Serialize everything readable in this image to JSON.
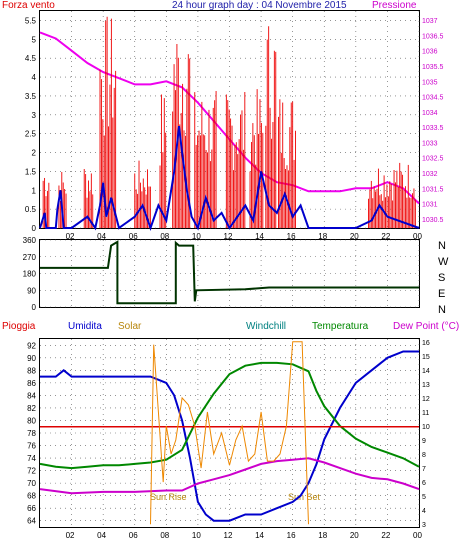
{
  "top_chart": {
    "title": "24 hour graph day : 04 Novembre 2015",
    "left_label": "Forza vento",
    "right_label": "Pressione",
    "title_color": "#2222aa",
    "left_color": "#dd0000",
    "right_color": "#cc00cc"
  },
  "dir_chart": {
    "labels": [
      "N",
      "W",
      "S",
      "E",
      "N"
    ]
  },
  "bottom_chart": {
    "labels": {
      "pioggia": "Pioggia",
      "umidita": "Umidita",
      "solar": "Solar",
      "windchill": "Windchill",
      "temperatura": "Temperatura",
      "dewpoint": "Dew Point (°C)"
    },
    "sun_rise": "Sun Rise",
    "sun_set": "Sun Set",
    "colors": {
      "pioggia": "#dd0000",
      "umidita": "#0000cc",
      "solar": "#b8860b",
      "windchill": "#008080",
      "temperatura": "#008800",
      "dewpoint": "#cc00cc"
    }
  },
  "chart_data": [
    {
      "type": "line",
      "title": "24 hour graph day : 04 Novembre 2015",
      "x_ticks": [
        "02",
        "04",
        "06",
        "08",
        "10",
        "12",
        "14",
        "16",
        "18",
        "20",
        "22",
        "00"
      ],
      "xlim": [
        0,
        24
      ],
      "grid": true,
      "left_axis": {
        "label": "Forza vento",
        "ticks": [
          "0",
          "0.5",
          "1",
          "1.5",
          "2",
          "2.5",
          "3",
          "3.5",
          "4",
          "4.5",
          "5",
          "5.5"
        ],
        "ylim": [
          0,
          5.75
        ]
      },
      "right_axis": {
        "label": "Pressione",
        "ticks": [
          "1030.5",
          "1031",
          "1031.5",
          "1032",
          "1032.5",
          "1033",
          "1033.5",
          "1034",
          "1034.5",
          "1035",
          "1035.5",
          "1036",
          "1036.5",
          "1037"
        ],
        "ylim": [
          1030.2,
          1037.3
        ]
      },
      "series": [
        {
          "name": "Pressione",
          "axis": "right",
          "color": "#ee00ee",
          "x": [
            0,
            1,
            2,
            3,
            4,
            5,
            6,
            7,
            8,
            9,
            10,
            11,
            12,
            13,
            14,
            15,
            16,
            17,
            18,
            19,
            20,
            21,
            22,
            23,
            24
          ],
          "y": [
            1036.6,
            1036.4,
            1036.0,
            1035.6,
            1035.3,
            1035.1,
            1034.9,
            1034.9,
            1035.0,
            1034.8,
            1034.3,
            1033.7,
            1033.1,
            1032.5,
            1032.0,
            1031.7,
            1031.6,
            1031.4,
            1031.4,
            1031.4,
            1031.5,
            1031.5,
            1031.7,
            1031.5,
            1031.0
          ]
        }
      ]
    },
    {
      "type": "line",
      "x_ticks": [],
      "xlim": [
        0,
        24
      ],
      "grid": true,
      "left_axis": {
        "ticks": [
          "0",
          "90",
          "180",
          "270",
          "360"
        ],
        "ylim": [
          0,
          360
        ]
      },
      "right_axis": {
        "ticks": [
          "N",
          "W",
          "S",
          "E",
          "N"
        ]
      },
      "series": [
        {
          "name": "",
          "color": "#003300",
          "x": [
            0,
            4.3,
            4.5,
            4.9,
            4.9,
            8.6,
            8.6,
            8.8,
            9.7,
            9.8,
            9.9,
            13.0,
            14.5,
            24
          ],
          "y": [
            210,
            210,
            330,
            350,
            20,
            20,
            345,
            330,
            330,
            30,
            90,
            95,
            105,
            105
          ]
        }
      ]
    },
    {
      "type": "line",
      "x_ticks": [
        "02",
        "04",
        "06",
        "08",
        "10",
        "12",
        "14",
        "16",
        "18",
        "20",
        "22",
        "00"
      ],
      "xlim": [
        0,
        24
      ],
      "grid": true,
      "left_axis": {
        "ticks": [
          "64",
          "66",
          "68",
          "70",
          "72",
          "74",
          "76",
          "78",
          "80",
          "82",
          "84",
          "86",
          "88",
          "90",
          "92"
        ],
        "ylim": [
          63,
          93
        ]
      },
      "right_axis": {
        "ticks": [
          "3",
          "4",
          "5",
          "6",
          "7",
          "8",
          "9",
          "10",
          "11",
          "12",
          "13",
          "14",
          "15",
          "16"
        ],
        "ylim": [
          2.8,
          16.2
        ]
      },
      "series": [
        {
          "name": "Umidita",
          "axis": "left",
          "color": "#0000cc",
          "x": [
            0,
            1,
            1.5,
            2,
            3,
            4,
            5,
            6,
            7,
            8,
            8.5,
            9,
            9.5,
            10,
            10.5,
            11,
            12,
            13,
            14,
            15,
            16,
            16.5,
            17,
            17.5,
            18,
            19,
            20,
            21,
            22,
            23,
            24
          ],
          "y": [
            87,
            87,
            88,
            87,
            87,
            87,
            87,
            87,
            87,
            86,
            84,
            80,
            74,
            67,
            65,
            64,
            64,
            65,
            65,
            66,
            67,
            68,
            70,
            73,
            77,
            82,
            86,
            88,
            90,
            91,
            91
          ]
        },
        {
          "name": "Temperatura",
          "axis": "right",
          "color": "#008800",
          "x": [
            0,
            1,
            2,
            3,
            4,
            5,
            6,
            7,
            8,
            9,
            10,
            11,
            12,
            13,
            14,
            15,
            16,
            17,
            17.5,
            18,
            19,
            20,
            21,
            22,
            23,
            24
          ],
          "y": [
            7.3,
            7.1,
            7.0,
            7.1,
            7.2,
            7.2,
            7.3,
            7.4,
            7.6,
            8.3,
            10.6,
            12.3,
            13.7,
            14.3,
            14.5,
            14.5,
            14.4,
            13.9,
            12.5,
            11.4,
            10.0,
            9.1,
            8.5,
            8.1,
            7.7,
            7.1
          ]
        },
        {
          "name": "Dew Point (°C)",
          "axis": "right",
          "color": "#cc00cc",
          "x": [
            0,
            2,
            4,
            6,
            8,
            9,
            10,
            11,
            12,
            13,
            14,
            15,
            16,
            17,
            18,
            19,
            20,
            21,
            22,
            23,
            24
          ],
          "y": [
            5.5,
            5.2,
            5.3,
            5.3,
            5.4,
            5.4,
            5.9,
            6.2,
            6.5,
            6.9,
            7.3,
            7.5,
            7.6,
            7.7,
            7.4,
            7.0,
            6.6,
            6.3,
            6.2,
            5.9,
            5.5
          ]
        },
        {
          "name": "Pioggia",
          "axis": "left",
          "color": "#dd0000",
          "x": [
            0,
            24
          ],
          "y": [
            79,
            79
          ]
        },
        {
          "name": "Solar",
          "axis": "right",
          "color": "#ee8800",
          "x": [
            7.0,
            7.2,
            7.5,
            7.8,
            8.0,
            8.3,
            8.6,
            9.0,
            9.4,
            9.8,
            10.2,
            10.6,
            11.0,
            11.5,
            12.0,
            12.4,
            12.8,
            13.2,
            13.6,
            14.0,
            14.4,
            14.8,
            15.2,
            15.6,
            16.0,
            16.3,
            16.6,
            16.8,
            17.0
          ],
          "y": [
            3,
            15.8,
            11,
            6,
            10,
            8,
            9,
            12,
            11.5,
            10,
            7,
            11,
            8,
            9.5,
            7.2,
            9,
            10,
            7.5,
            8,
            11,
            7.5,
            7.5,
            8,
            10,
            16,
            16,
            16,
            9.5,
            3
          ]
        }
      ]
    }
  ]
}
